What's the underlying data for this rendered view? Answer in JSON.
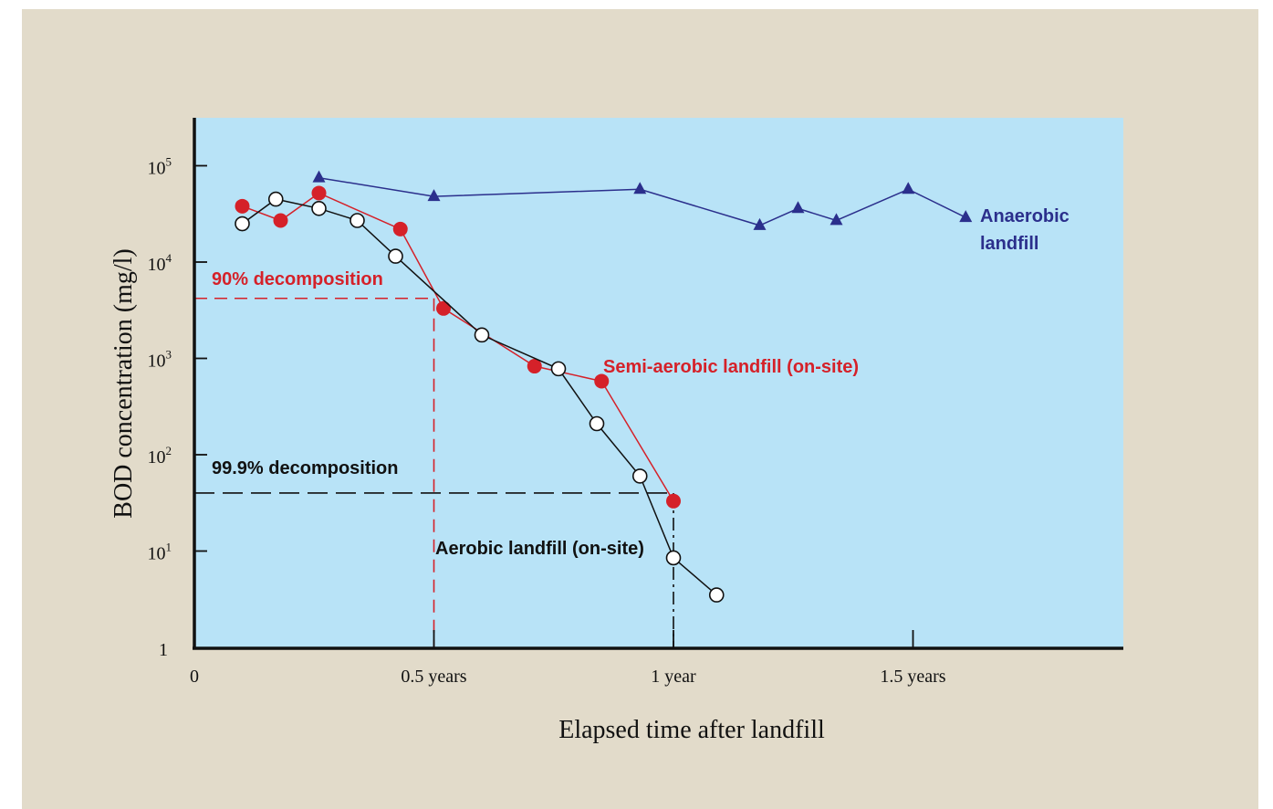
{
  "chart_data": {
    "type": "line",
    "title": "",
    "xlabel": "Elapsed time after landfill",
    "ylabel": "BOD concentration (mg/l)",
    "x_unit": "years",
    "y_scale": "log",
    "xlim": [
      0,
      1.95
    ],
    "ylim": [
      1,
      250000
    ],
    "x_ticks": [
      {
        "value": 0,
        "label": "0"
      },
      {
        "value": 0.5,
        "label": "0.5 years"
      },
      {
        "value": 1,
        "label": "1 year"
      },
      {
        "value": 1.5,
        "label": "1.5 years"
      }
    ],
    "y_ticks": [
      {
        "value": 1,
        "base": "1",
        "exp": ""
      },
      {
        "value": 10,
        "base": "10",
        "exp": "1"
      },
      {
        "value": 100,
        "base": "10",
        "exp": "2"
      },
      {
        "value": 1000,
        "base": "10",
        "exp": "3"
      },
      {
        "value": 10000,
        "base": "10",
        "exp": "4"
      },
      {
        "value": 100000,
        "base": "10",
        "exp": "5"
      }
    ],
    "series": [
      {
        "name": "Anaerobic landfill",
        "color": "#2b2f8c",
        "marker": "triangle",
        "x": [
          0.26,
          0.5,
          0.93,
          1.18,
          1.26,
          1.34,
          1.49,
          1.61
        ],
        "y": [
          75000,
          48000,
          57000,
          24000,
          36000,
          27000,
          57000,
          29000
        ]
      },
      {
        "name": "Semi-aerobic landfill (on-site)",
        "color": "#d52129",
        "marker": "filled-circle",
        "x": [
          0.1,
          0.18,
          0.26,
          0.43,
          0.52,
          0.71,
          0.85,
          1.0
        ],
        "y": [
          38000,
          27000,
          52000,
          22000,
          3300,
          830,
          580,
          33
        ]
      },
      {
        "name": "Aerobic landfill (on-site)",
        "color": "#111111",
        "marker": "open-circle",
        "x": [
          0.1,
          0.17,
          0.26,
          0.34,
          0.42,
          0.6,
          0.76,
          0.84,
          0.93,
          1.0,
          1.09
        ],
        "y": [
          25000,
          45000,
          36000,
          27000,
          11500,
          1750,
          780,
          210,
          60,
          8.5,
          3.5
        ]
      }
    ],
    "annotations": {
      "anaerobic_line1": "Anaerobic",
      "anaerobic_line2": "landfill",
      "semi_aerobic": "Semi-aerobic landfill (on-site)",
      "aerobic": "Aerobic landfill (on-site)",
      "decomp90": "90% decomposition",
      "decomp999": "99.9% decomposition"
    },
    "reference_lines": {
      "decomp90": {
        "y": 4200,
        "x": 0.5,
        "color": "#d52129"
      },
      "decomp999": {
        "y": 40,
        "x": 1.0,
        "color": "#111111"
      }
    },
    "colors": {
      "background": "#e2dbca",
      "plot_area": "#b8e3f7",
      "axis": "#111111"
    }
  }
}
